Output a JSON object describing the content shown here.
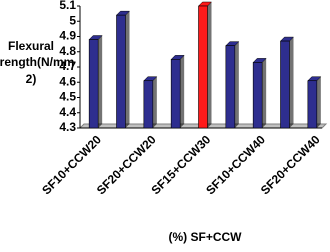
{
  "chart_data": {
    "type": "bar",
    "ylabel": [
      "Flexural",
      "Strength(N/mm",
      "2)"
    ],
    "xlabel": "(%) SF+CCW",
    "categories": [
      "SF10+CCW20",
      null,
      "SF20+CCW20",
      null,
      "SF15+CCW30",
      null,
      "SF10+CCW40",
      null,
      "SF20+CCW40"
    ],
    "values": [
      4.88,
      5.04,
      4.61,
      4.75,
      5.1,
      4.84,
      4.73,
      4.87,
      4.61
    ],
    "colors": [
      "#2e2e8f",
      "#2e2e8f",
      "#2e2e8f",
      "#2e2e8f",
      "#ff1a1a",
      "#2e2e8f",
      "#2e2e8f",
      "#2e2e8f",
      "#2e2e8f"
    ],
    "ylim": [
      4.3,
      5.1
    ],
    "yticks": [
      4.3,
      4.4,
      4.5,
      4.6,
      4.7,
      4.8,
      4.9,
      5,
      5.1
    ]
  }
}
